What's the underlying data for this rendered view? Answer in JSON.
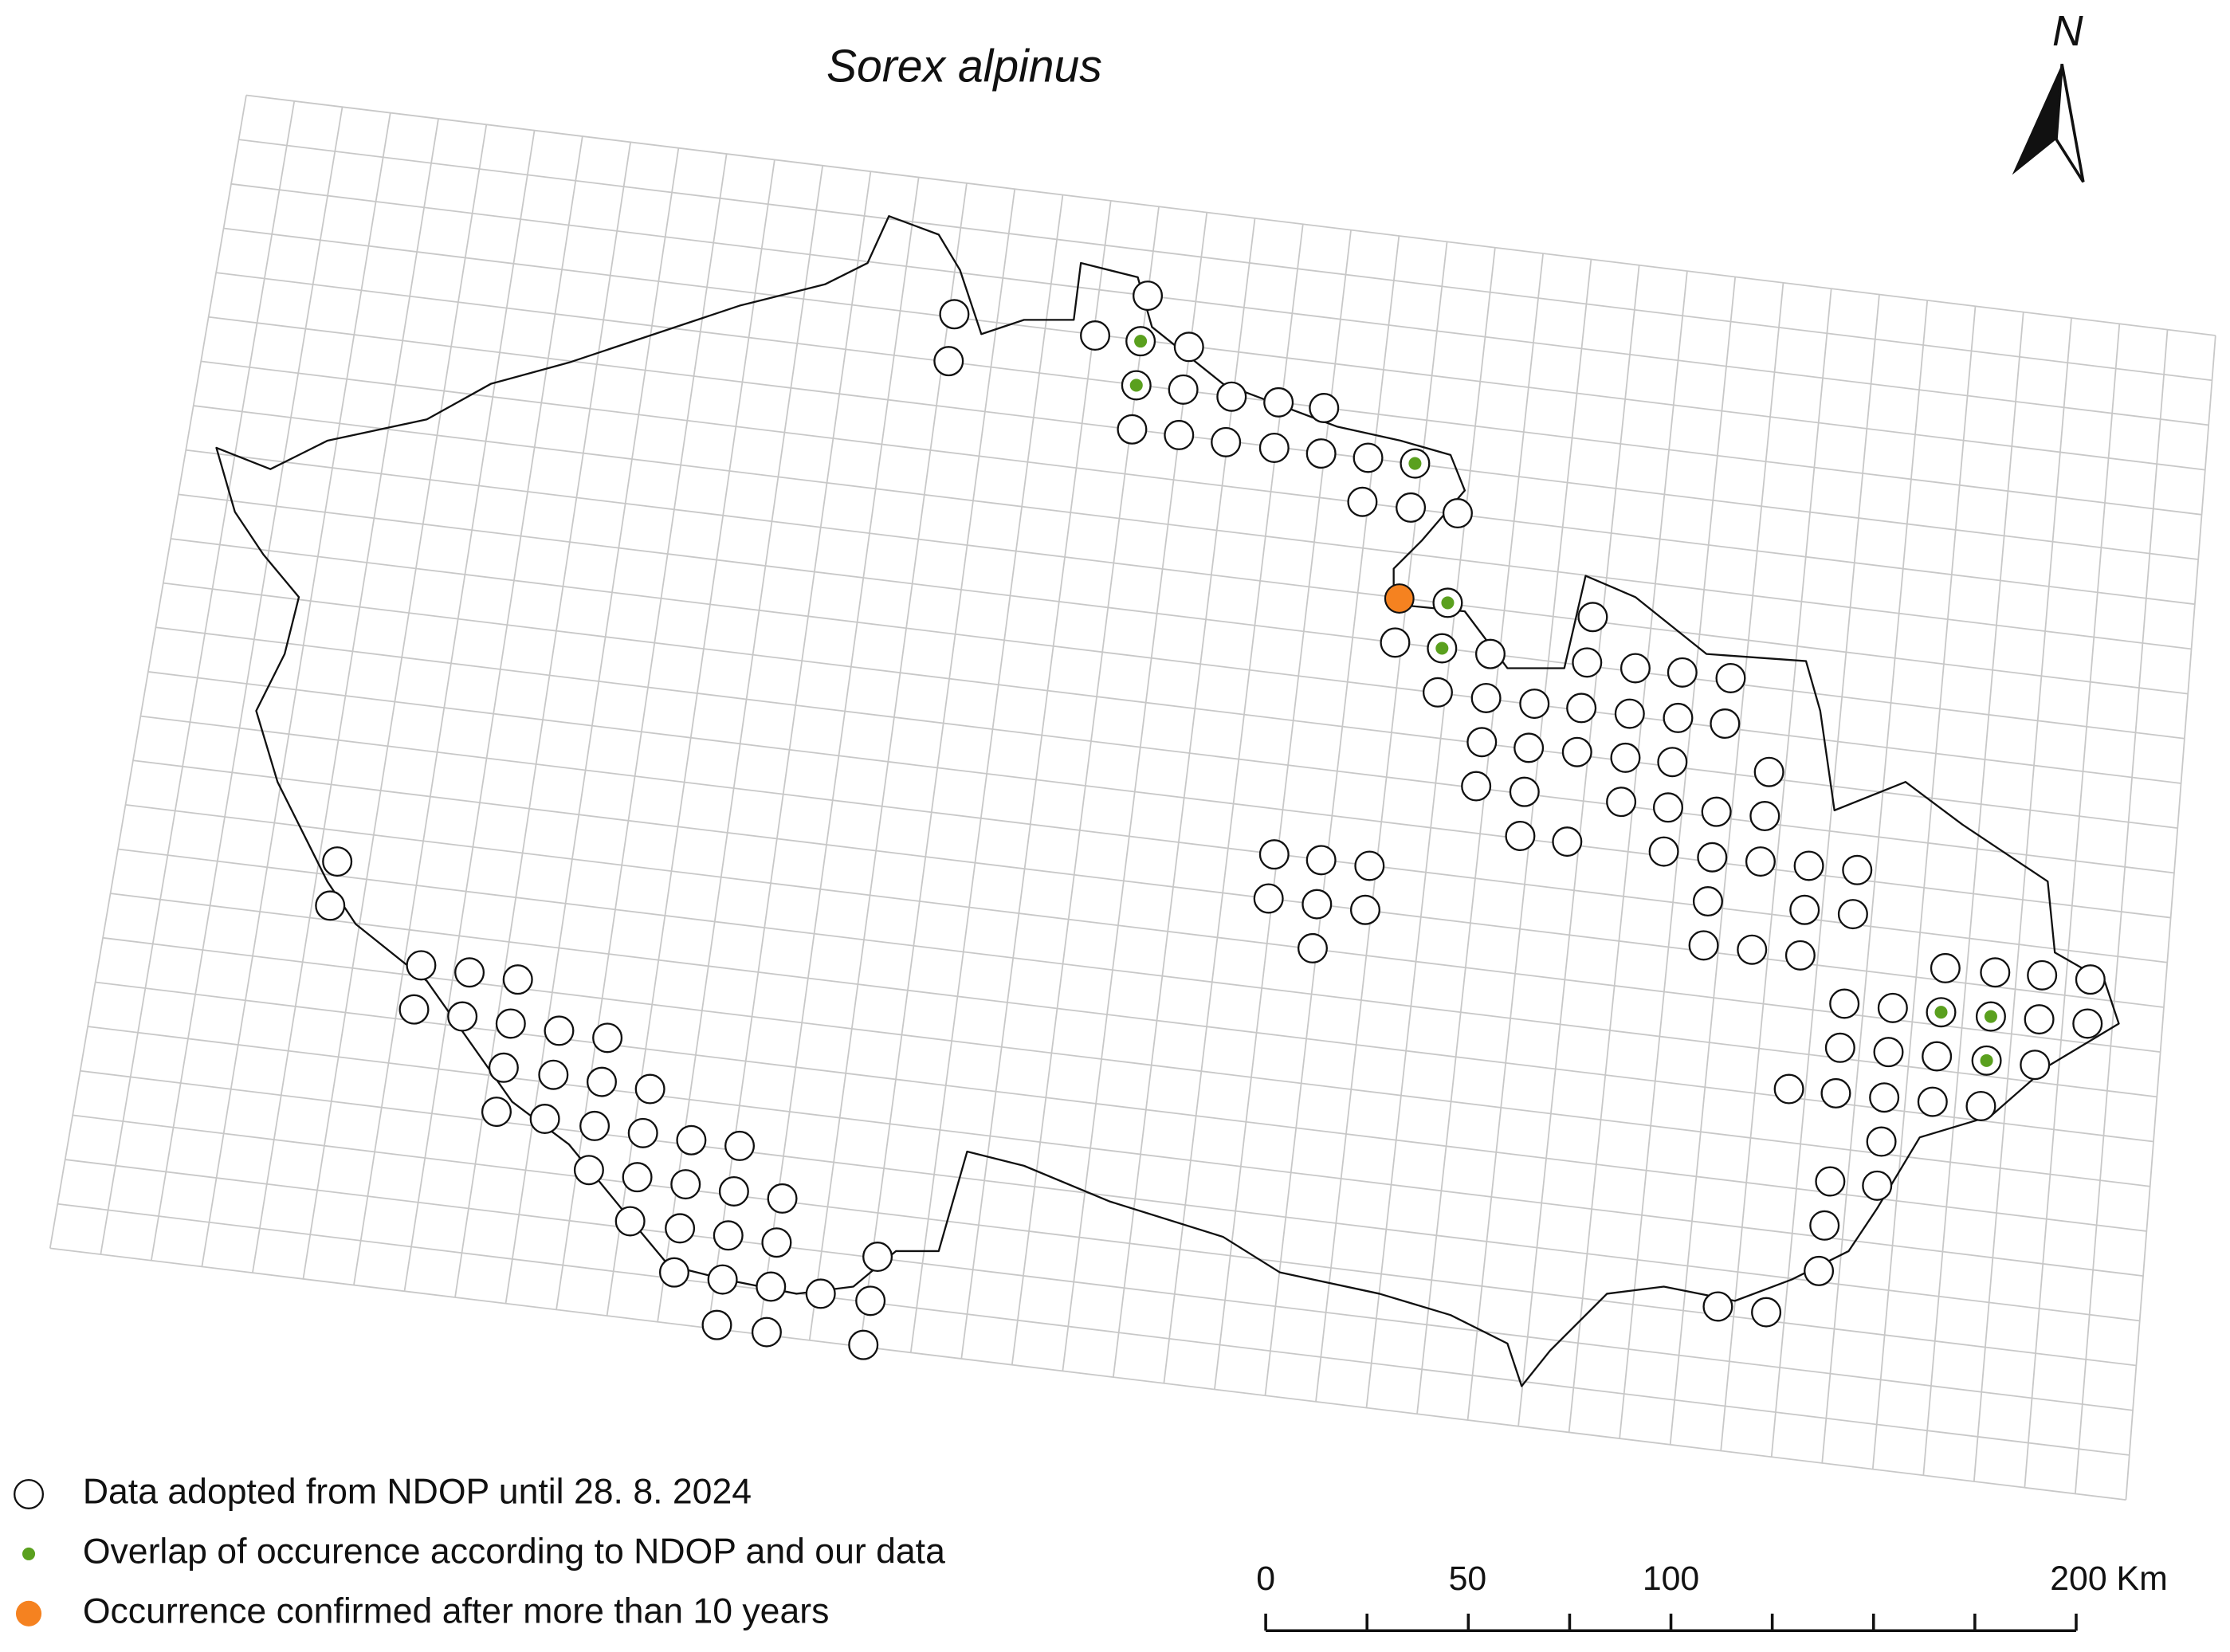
{
  "title": "Sorex alpinus",
  "north": "N",
  "legend": [
    {
      "label": "Data adopted from NDOP until 28. 8. 2024",
      "color": "#ffffff"
    },
    {
      "label": "Overlap of occurence according to NDOP and our data",
      "color": "#5aa01e"
    },
    {
      "label": "Occurrence confirmed after more than 10 years",
      "color": "#f58220"
    }
  ],
  "scale_bar": {
    "labels": [
      "0",
      "50",
      "100",
      "200 Km"
    ]
  }
}
